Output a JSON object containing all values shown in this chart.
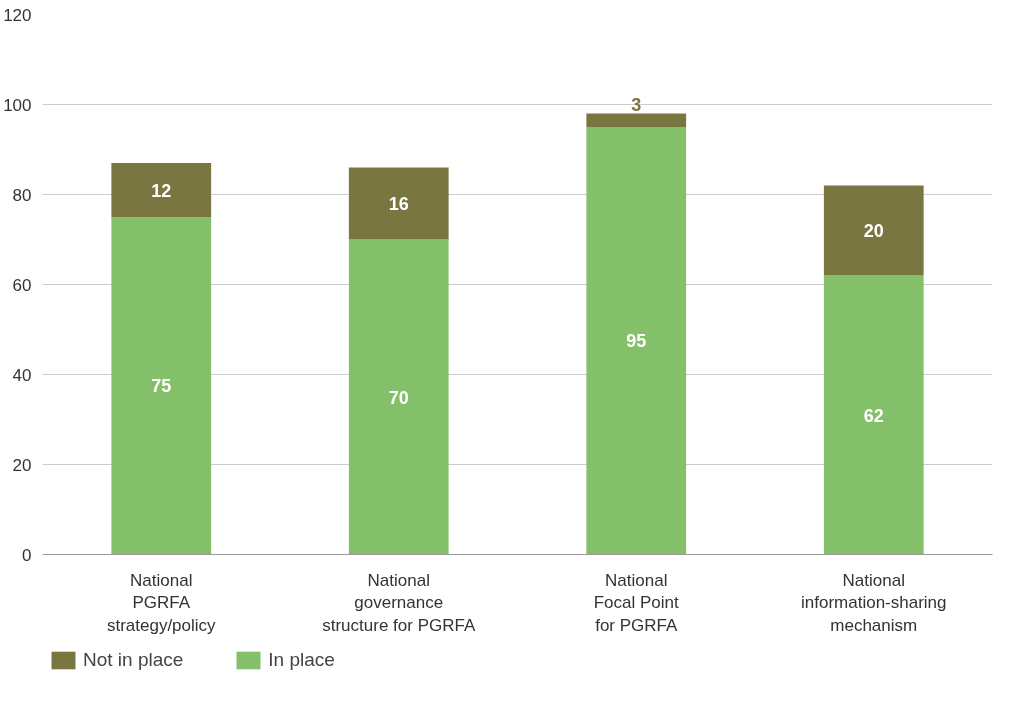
{
  "chart_data": {
    "type": "bar",
    "stacked": true,
    "categories": [
      "National\nPGRFA\nstrategy/policy",
      "National\ngovernance\nstructure for PGRFA",
      "National\nFocal Point\nfor PGRFA",
      "National\ninformation-sharing\nmechanism"
    ],
    "series": [
      {
        "name": "In place",
        "color": "#84c06a",
        "values": [
          75,
          70,
          95,
          62
        ]
      },
      {
        "name": "Not in place",
        "color": "#7a7642",
        "values": [
          12,
          16,
          3,
          20
        ]
      }
    ],
    "ylim": [
      0,
      120
    ],
    "yticks": [
      0,
      20,
      40,
      60,
      80,
      100,
      120
    ],
    "grid": "y",
    "legend": "bottom left",
    "data_labels": true
  }
}
